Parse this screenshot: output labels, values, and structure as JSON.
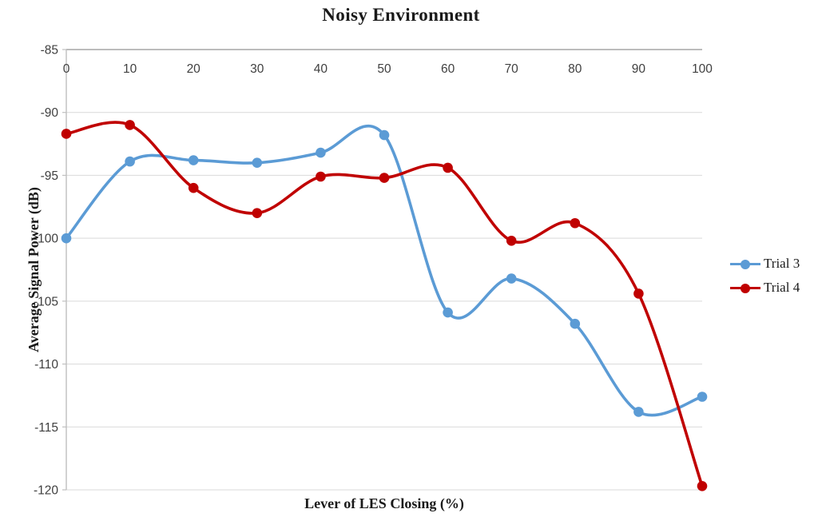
{
  "chart_data": {
    "type": "line",
    "title": "Noisy Environment",
    "xlabel": "Lever of LES Closing (%)",
    "ylabel": "Average Signal Power (dB)",
    "x": [
      0,
      10,
      20,
      30,
      40,
      50,
      60,
      70,
      80,
      90,
      100
    ],
    "series": [
      {
        "name": "Trial 3",
        "color": "#5B9BD5",
        "values": [
          -100.0,
          -93.9,
          -93.8,
          -94.0,
          -93.2,
          -91.8,
          -105.9,
          -103.2,
          -106.8,
          -113.8,
          -112.6
        ]
      },
      {
        "name": "Trial 4",
        "color": "#C00000",
        "values": [
          -91.7,
          -91.0,
          -96.0,
          -98.0,
          -95.1,
          -95.2,
          -94.4,
          -100.2,
          -98.8,
          -104.4,
          -119.7
        ]
      }
    ],
    "xlim": [
      0,
      100
    ],
    "ylim": [
      -120,
      -85
    ],
    "yticks": [
      -85,
      -90,
      -95,
      -100,
      -105,
      -110,
      -115,
      -120
    ],
    "xticks": [
      0,
      10,
      20,
      30,
      40,
      50,
      60,
      70,
      80,
      90,
      100
    ],
    "grid": "horizontal",
    "smooth": true,
    "legend_position": "right-middle",
    "x_axis_position": "top",
    "colors": {
      "axis_line": "#BFBFBF",
      "top_axis_line": "#A6A6A6",
      "gridline": "#D9D9D9",
      "tick_label": "#3F3F3F",
      "text": "#1A1A1A"
    }
  }
}
